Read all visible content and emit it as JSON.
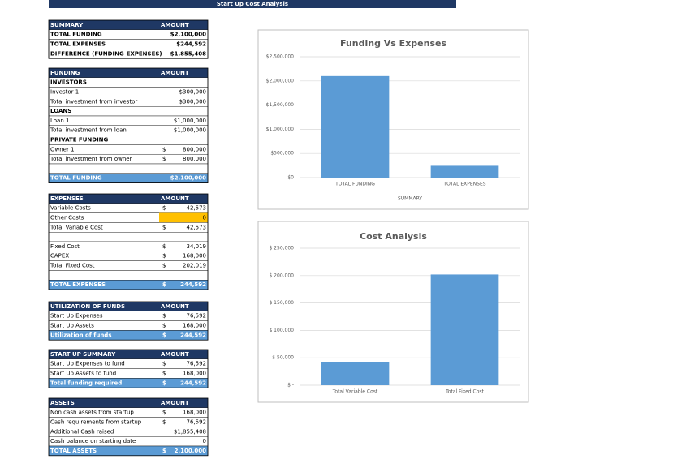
{
  "title": "Start Up Cost Analysis",
  "tables": [
    {
      "header": [
        "SUMMARY",
        "AMOUNT"
      ],
      "rows": [
        [
          "TOTAL FUNDING",
          "$2,100,000"
        ],
        [
          "TOTAL EXPENSES",
          "$244,592"
        ],
        [
          "DIFFERENCE (FUNDING-EXPENSES)",
          "$1,855,408"
        ]
      ]
    },
    {
      "header": [
        "FUNDING",
        "AMOUNT"
      ],
      "rows": [
        [
          "INVESTORS"
        ],
        [
          "Investor 1",
          "$300,000"
        ],
        [
          "Total investment from investor",
          "$300,000"
        ],
        [
          "LOANS"
        ],
        [
          "Loan 1",
          "$1,000,000"
        ],
        [
          "Total investment from loan",
          "$1,000,000"
        ],
        [
          "PRIVATE FUNDING"
        ],
        [
          "Owner 1",
          "$",
          "800,000"
        ],
        [
          "Total investment from owner",
          "$",
          "800,000"
        ],
        [
          "TOTAL FUNDING",
          "$2,100,000"
        ]
      ]
    },
    {
      "header": [
        "EXPENSES",
        "AMOUNT"
      ],
      "rows": [
        [
          "Variable Costs",
          "$",
          "42,573"
        ],
        [
          "Other Costs",
          "0"
        ],
        [
          "Total Variable Cost",
          "$",
          "42,573"
        ],
        [
          "Fixed Cost",
          "$",
          "34,019"
        ],
        [
          "CAPEX",
          "$",
          "168,000"
        ],
        [
          "Total Fixed Cost",
          "$",
          "202,019"
        ],
        [
          "TOTAL EXPENSES",
          "$",
          "244,592"
        ]
      ]
    },
    {
      "header": [
        "UTILIZATION OF FUNDS",
        "AMOUNT"
      ],
      "rows": [
        [
          "Start Up Expenses",
          "$",
          "76,592"
        ],
        [
          "Start Up Assets",
          "$",
          "168,000"
        ],
        [
          "Utilization of funds",
          "$",
          "244,592"
        ]
      ]
    },
    {
      "header": [
        "START UP SUMMARY",
        "AMOUNT"
      ],
      "rows": [
        [
          "Start Up Expenses to fund",
          "$",
          "76,592"
        ],
        [
          "Start Up Assets to fund",
          "$",
          "168,000"
        ],
        [
          "Total funding required",
          "$",
          "244,592"
        ]
      ]
    },
    {
      "header": [
        "ASSETS",
        "AMOUNT"
      ],
      "rows": [
        [
          "Non cash assets from startup",
          "$",
          "168,000"
        ],
        [
          "Cash requirements from startup",
          "$",
          "76,592"
        ],
        [
          "Additional Cash raised",
          "$1,855,408"
        ],
        [
          "Cash balance on starting date",
          "0"
        ],
        [
          "TOTAL ASSETS",
          "$",
          "2,100,000"
        ]
      ]
    }
  ],
  "chart_data": [
    {
      "type": "bar",
      "title": "Funding Vs Expenses",
      "x_label": "SUMMARY",
      "color": "#5b9bd5",
      "grid": true,
      "categories": [
        "TOTAL FUNDING",
        "TOTAL EXPENSES"
      ],
      "values": [
        2100000,
        244592
      ],
      "ylim": [
        0,
        2500000
      ],
      "yticks": [
        {
          "value": 0,
          "label": "$0"
        },
        {
          "value": 500000,
          "label": "$500,000"
        },
        {
          "value": 1000000,
          "label": "$1,000,000"
        },
        {
          "value": 1500000,
          "label": "$1,500,000"
        },
        {
          "value": 2000000,
          "label": "$2,000,000"
        },
        {
          "value": 2500000,
          "label": "$2,500,000"
        }
      ]
    },
    {
      "type": "bar",
      "title": "Cost Analysis",
      "color": "#5b9bd5",
      "grid": true,
      "categories": [
        "Total Variable Cost",
        "Total Fixed Cost"
      ],
      "values": [
        42573,
        202019
      ],
      "ylim": [
        0,
        250000
      ],
      "yticks": [
        {
          "value": 0,
          "label": "$ -"
        },
        {
          "value": 50000,
          "label": "$ 50,000"
        },
        {
          "value": 100000,
          "label": "$ 100,000"
        },
        {
          "value": 150000,
          "label": "$ 150,000"
        },
        {
          "value": 200000,
          "label": "$ 200,000"
        },
        {
          "value": 250000,
          "label": "$ 250,000"
        }
      ]
    }
  ]
}
